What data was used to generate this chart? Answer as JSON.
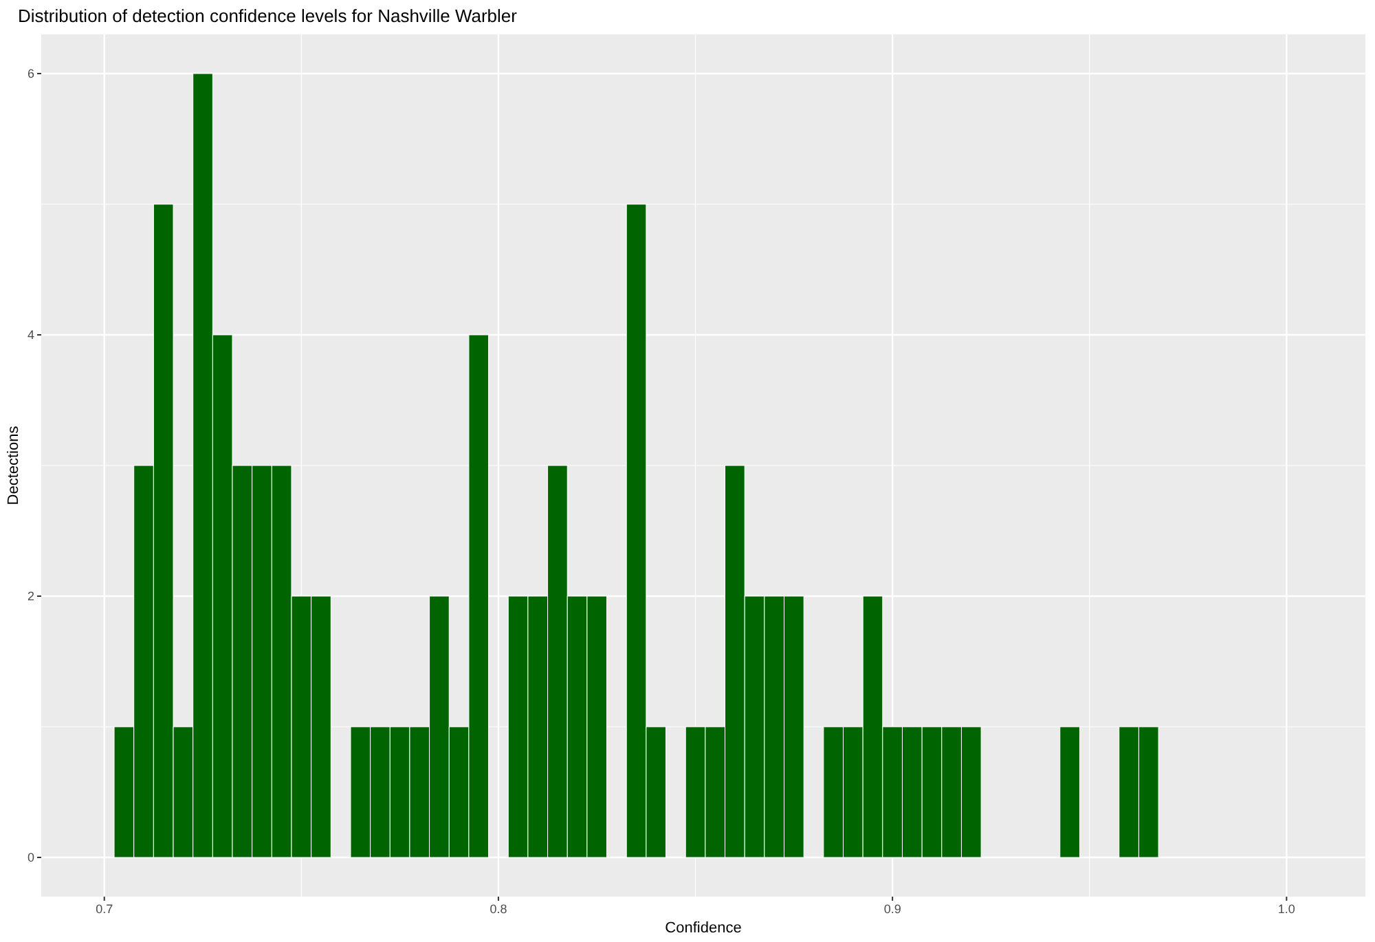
{
  "chart_data": {
    "type": "histogram",
    "title": "Distribution of detection confidence levels for Nashville Warbler",
    "xlabel": "Confidence",
    "ylabel": "Dectections",
    "color": "#006400",
    "bins": [
      0.7025,
      0.7075,
      0.7125,
      0.7175,
      0.7225,
      0.7275,
      0.7325,
      0.7375,
      0.7425,
      0.7475,
      0.7525,
      0.7575,
      0.7625,
      0.7675,
      0.7725,
      0.7775,
      0.7825,
      0.7875,
      0.7925,
      0.7975,
      0.8025,
      0.8075,
      0.8125,
      0.8175,
      0.8225,
      0.8275,
      0.8325,
      0.8375,
      0.8425,
      0.8475,
      0.8525,
      0.8575,
      0.8625,
      0.8675,
      0.8725,
      0.8775,
      0.8825,
      0.8875,
      0.8925,
      0.8975,
      0.9025,
      0.9075,
      0.9125,
      0.9175,
      0.9225,
      0.9275,
      0.9325,
      0.9375,
      0.9425,
      0.9475,
      0.9525,
      0.9575,
      0.9625,
      0.9675
    ],
    "values": [
      1,
      3,
      5,
      1,
      6,
      4,
      3,
      3,
      3,
      2,
      2,
      0,
      1,
      1,
      1,
      1,
      2,
      1,
      4,
      0,
      2,
      2,
      3,
      2,
      2,
      0,
      5,
      1,
      0,
      1,
      1,
      3,
      2,
      2,
      2,
      0,
      1,
      1,
      2,
      1,
      1,
      1,
      1,
      1,
      0,
      0,
      0,
      0,
      1,
      0,
      0,
      1,
      1
    ],
    "xlim": [
      0.684,
      1.02
    ],
    "xticks": [
      0.7,
      0.8,
      0.9,
      {
        "value": 1.0,
        "label": "1.0"
      }
    ],
    "ylim": [
      -0.3,
      6.3
    ],
    "yticks": [
      0,
      2,
      4,
      6
    ],
    "grid": true
  }
}
